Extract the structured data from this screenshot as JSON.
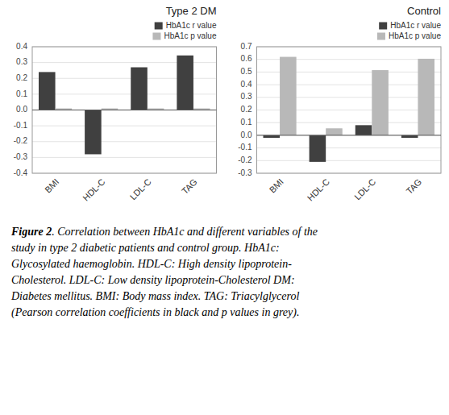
{
  "chart_data": [
    {
      "type": "bar",
      "title": "Type 2 DM",
      "categories": [
        "BMI",
        "HDL-C",
        "LDL-C",
        "TAG"
      ],
      "series": [
        {
          "name": "HbA1c r value",
          "color": "#404040",
          "values": [
            0.24,
            -0.28,
            0.27,
            0.345
          ]
        },
        {
          "name": "HbA1c p value",
          "color": "#b8b8b8",
          "values": [
            0.01,
            0.01,
            0.01,
            0.01
          ]
        }
      ],
      "ylim": [
        -0.4,
        0.4
      ],
      "yticks": [
        -0.4,
        -0.3,
        -0.2,
        -0.1,
        {
          "value": 0,
          "label": "0.0"
        },
        0.1,
        0.2,
        0.3,
        0.4
      ],
      "grid": true,
      "legend": "upper right"
    },
    {
      "type": "bar",
      "title": "Control",
      "categories": [
        "BMI",
        "HDL-C",
        "LDL-C",
        "TAG"
      ],
      "series": [
        {
          "name": "HbA1c r value",
          "color": "#404040",
          "values": [
            -0.02,
            -0.21,
            0.08,
            -0.02
          ]
        },
        {
          "name": "HbA1c p value",
          "color": "#b8b8b8",
          "values": [
            0.62,
            0.055,
            0.515,
            0.605
          ]
        }
      ],
      "ylim": [
        -0.3,
        0.7
      ],
      "yticks": [
        -0.3,
        -0.2,
        -0.1,
        {
          "value": 0,
          "label": "0.0"
        },
        0.1,
        0.2,
        0.3,
        0.4,
        0.5,
        0.6,
        0.7
      ],
      "grid": true,
      "legend": "upper right"
    }
  ],
  "caption": {
    "label": "Figure 2",
    "lines": [
      ". Correlation between HbA1c and different variables of the",
      "study in type 2 diabetic patients and control group. HbA1c:",
      "Glycosylated haemoglobin. HDL-C: High density lipoprotein-",
      "Cholesterol. LDL-C: Low density lipoprotein-Cholesterol DM:",
      "Diabetes mellitus. BMI: Body mass index. TAG: Triacylglycerol",
      "(Pearson correlation coefficients in black and p values in grey)."
    ]
  }
}
